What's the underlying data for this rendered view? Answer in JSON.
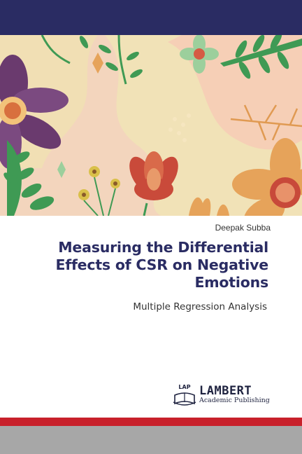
{
  "book": {
    "author": "Deepak Subba",
    "title": "Measuring the Differential Effects of CSR on Negative Emotions",
    "subtitle": "Multiple Regression Analysis"
  },
  "publisher": {
    "name": "LAMBERT",
    "tagline": "Academic Publishing",
    "logo_text": "LAP"
  },
  "colors": {
    "navy": "#2a2c63",
    "red_band": "#c8202b",
    "gray_band": "#a7a7a7"
  }
}
